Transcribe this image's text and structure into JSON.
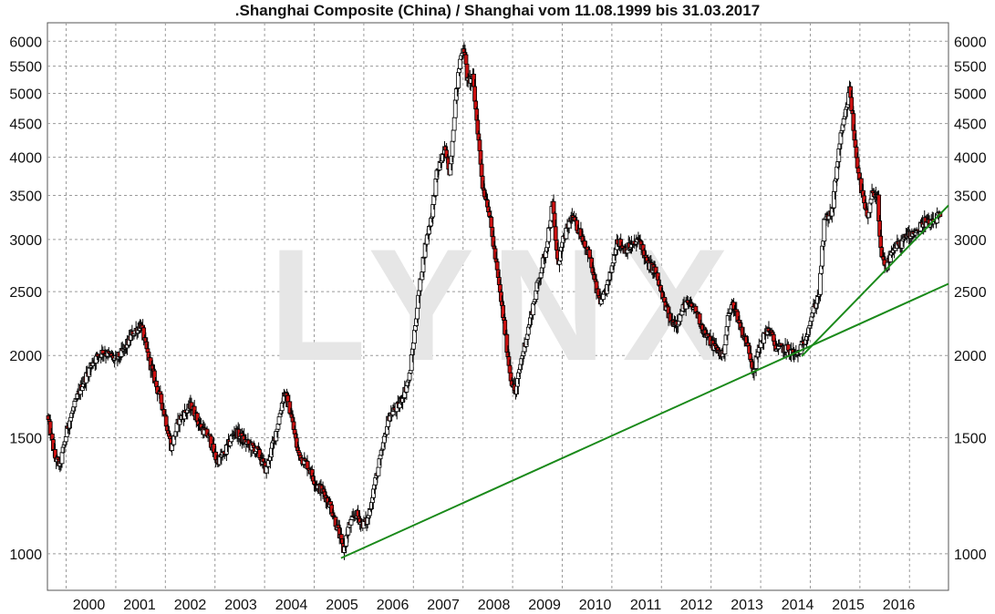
{
  "chart_data": {
    "type": "candlestick",
    "title": ".Shanghai Composite (China) / Shanghai vom 11.08.1999 bis 31.03.2017",
    "watermark": "LYNX",
    "y_scale": "log",
    "ylim": [
      880,
      6400
    ],
    "y_ticks": [
      1000,
      1500,
      2000,
      2500,
      3000,
      3500,
      4000,
      4500,
      5000,
      5500,
      6000
    ],
    "x_range": [
      1999.6,
      2017.4
    ],
    "x_ticks": [
      {
        "year": 2000,
        "label": "2000"
      },
      {
        "year": 2001,
        "label": "2001"
      },
      {
        "year": 2002,
        "label": "2002"
      },
      {
        "year": 2003,
        "label": "2003"
      },
      {
        "year": 2004,
        "label": "2004"
      },
      {
        "year": 2005,
        "label": "2005"
      },
      {
        "year": 2006,
        "label": "2006"
      },
      {
        "year": 2007,
        "label": "2007"
      },
      {
        "year": 2008,
        "label": "2008"
      },
      {
        "year": 2009,
        "label": "2009"
      },
      {
        "year": 2010,
        "label": "2010"
      },
      {
        "year": 2011,
        "label": "2011"
      },
      {
        "year": 2012,
        "label": "2012"
      },
      {
        "year": 2013,
        "label": "2013"
      },
      {
        "year": 2014,
        "label": "2014"
      },
      {
        "year": 2015,
        "label": "2015"
      },
      {
        "year": 2016,
        "label": "2016"
      }
    ],
    "x_grid_years": [
      1999.97,
      2000.95,
      2001.93,
      2002.91,
      2003.89,
      2004.87,
      2005.85,
      2006.83,
      2007.81,
      2008.79,
      2009.77,
      2010.75,
      2011.73,
      2012.71,
      2013.69,
      2014.67,
      2015.65,
      2016.63
    ],
    "price_path": [
      [
        1999.6,
        1620
      ],
      [
        1999.75,
        1400
      ],
      [
        1999.85,
        1360
      ],
      [
        2000.0,
        1560
      ],
      [
        2000.25,
        1780
      ],
      [
        2000.5,
        1960
      ],
      [
        2000.7,
        2030
      ],
      [
        2000.95,
        1970
      ],
      [
        2001.1,
        2030
      ],
      [
        2001.3,
        2170
      ],
      [
        2001.45,
        2230
      ],
      [
        2001.55,
        2050
      ],
      [
        2001.75,
        1800
      ],
      [
        2001.9,
        1650
      ],
      [
        2002.05,
        1450
      ],
      [
        2002.2,
        1600
      ],
      [
        2002.45,
        1680
      ],
      [
        2002.6,
        1570
      ],
      [
        2002.8,
        1500
      ],
      [
        2002.95,
        1380
      ],
      [
        2003.1,
        1420
      ],
      [
        2003.3,
        1540
      ],
      [
        2003.5,
        1480
      ],
      [
        2003.75,
        1430
      ],
      [
        2003.92,
        1340
      ],
      [
        2004.1,
        1510
      ],
      [
        2004.28,
        1760
      ],
      [
        2004.4,
        1650
      ],
      [
        2004.55,
        1420
      ],
      [
        2004.75,
        1360
      ],
      [
        2004.92,
        1270
      ],
      [
        2005.05,
        1240
      ],
      [
        2005.2,
        1180
      ],
      [
        2005.35,
        1080
      ],
      [
        2005.45,
        1010
      ],
      [
        2005.55,
        1100
      ],
      [
        2005.7,
        1150
      ],
      [
        2005.82,
        1110
      ],
      [
        2005.92,
        1120
      ],
      [
        2006.05,
        1260
      ],
      [
        2006.2,
        1420
      ],
      [
        2006.35,
        1620
      ],
      [
        2006.55,
        1680
      ],
      [
        2006.75,
        1850
      ],
      [
        2006.9,
        2350
      ],
      [
        2007.05,
        2900
      ],
      [
        2007.2,
        3300
      ],
      [
        2007.3,
        3800
      ],
      [
        2007.45,
        4100
      ],
      [
        2007.55,
        3800
      ],
      [
        2007.65,
        4800
      ],
      [
        2007.75,
        5600
      ],
      [
        2007.82,
        5950
      ],
      [
        2007.9,
        5200
      ],
      [
        2008.0,
        5300
      ],
      [
        2008.1,
        4400
      ],
      [
        2008.2,
        3600
      ],
      [
        2008.3,
        3400
      ],
      [
        2008.45,
        2800
      ],
      [
        2008.6,
        2300
      ],
      [
        2008.75,
        1850
      ],
      [
        2008.85,
        1750
      ],
      [
        2008.95,
        1950
      ],
      [
        2009.1,
        2200
      ],
      [
        2009.3,
        2600
      ],
      [
        2009.45,
        2900
      ],
      [
        2009.58,
        3400
      ],
      [
        2009.68,
        2750
      ],
      [
        2009.8,
        3000
      ],
      [
        2009.95,
        3250
      ],
      [
        2010.15,
        3050
      ],
      [
        2010.3,
        2850
      ],
      [
        2010.45,
        2500
      ],
      [
        2010.55,
        2400
      ],
      [
        2010.7,
        2600
      ],
      [
        2010.85,
        3000
      ],
      [
        2011.0,
        2900
      ],
      [
        2011.2,
        2950
      ],
      [
        2011.3,
        3000
      ],
      [
        2011.45,
        2750
      ],
      [
        2011.6,
        2700
      ],
      [
        2011.75,
        2450
      ],
      [
        2011.92,
        2250
      ],
      [
        2012.05,
        2250
      ],
      [
        2012.2,
        2400
      ],
      [
        2012.4,
        2350
      ],
      [
        2012.6,
        2150
      ],
      [
        2012.8,
        2050
      ],
      [
        2012.95,
        2000
      ],
      [
        2013.05,
        2300
      ],
      [
        2013.15,
        2400
      ],
      [
        2013.3,
        2200
      ],
      [
        2013.45,
        2050
      ],
      [
        2013.55,
        1900
      ],
      [
        2013.7,
        2100
      ],
      [
        2013.85,
        2200
      ],
      [
        2014.0,
        2050
      ],
      [
        2014.2,
        2050
      ],
      [
        2014.4,
        2000
      ],
      [
        2014.55,
        2100
      ],
      [
        2014.7,
        2300
      ],
      [
        2014.85,
        2500
      ],
      [
        2014.95,
        3200
      ],
      [
        2015.1,
        3300
      ],
      [
        2015.25,
        4200
      ],
      [
        2015.4,
        4800
      ],
      [
        2015.45,
        5100
      ],
      [
        2015.55,
        4200
      ],
      [
        2015.62,
        3800
      ],
      [
        2015.7,
        3500
      ],
      [
        2015.8,
        3200
      ],
      [
        2015.9,
        3550
      ],
      [
        2016.0,
        3500
      ],
      [
        2016.05,
        2900
      ],
      [
        2016.15,
        2700
      ],
      [
        2016.3,
        2900
      ],
      [
        2016.45,
        2950
      ],
      [
        2016.6,
        3050
      ],
      [
        2016.8,
        3100
      ],
      [
        2016.92,
        3200
      ],
      [
        2017.05,
        3150
      ],
      [
        2017.2,
        3250
      ]
    ],
    "trendlines": [
      {
        "name": "long-term-support",
        "color": "#1a8a1a",
        "from": [
          2005.4,
          985
        ],
        "to": [
          2017.4,
          2570
        ]
      },
      {
        "name": "short-term-support",
        "color": "#1a8a1a",
        "from": [
          2014.5,
          1995
        ],
        "to": [
          2017.4,
          3380
        ]
      }
    ],
    "colors": {
      "up_fill": "#ffffff",
      "down_fill": "#cc1111",
      "candle_stroke": "#000000",
      "grid": "#9a9a9a",
      "watermark": "#e6e6e6"
    }
  }
}
